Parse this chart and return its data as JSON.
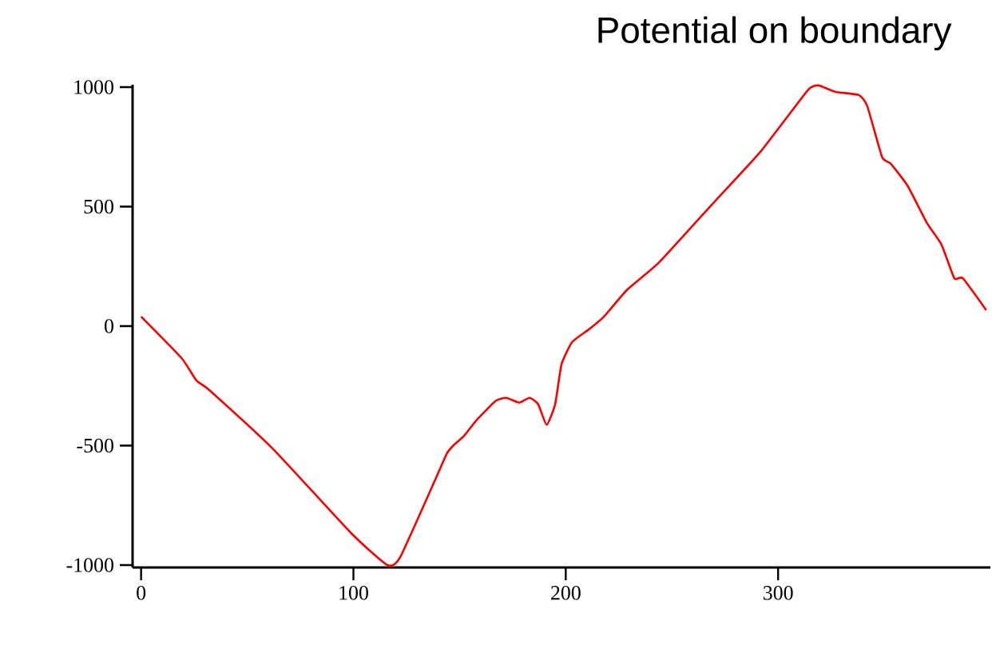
{
  "chart_data": {
    "type": "line",
    "title": "Potential on boundary",
    "x": [
      0,
      19,
      26,
      32,
      62,
      99,
      116,
      122,
      139,
      144,
      147,
      152,
      158,
      167,
      172,
      178,
      183,
      187,
      191,
      195,
      198,
      203,
      211,
      218,
      229,
      244,
      270,
      292,
      314,
      319,
      327,
      338,
      342,
      349,
      353,
      361,
      370,
      377,
      383,
      387,
      398
    ],
    "series": [
      {
        "color": "#ff0000",
        "values": [
          40,
          -133,
          -227,
          -267,
          -513,
          -867,
          -1000,
          -967,
          -633,
          -533,
          -500,
          -460,
          -393,
          -313,
          -300,
          -320,
          -300,
          -327,
          -413,
          -327,
          -160,
          -67,
          -13,
          40,
          153,
          267,
          520,
          733,
          987,
          1007,
          980,
          967,
          920,
          707,
          680,
          587,
          433,
          340,
          200,
          200,
          67
        ]
      }
    ],
    "xlim": [
      -4,
      400
    ],
    "ylim": [
      -1010,
      1010
    ],
    "xticks": [
      0,
      100,
      200,
      300
    ],
    "yticks": [
      -1000,
      -500,
      0,
      500,
      1000
    ],
    "grid": false,
    "line_style": "solid",
    "marker": "none"
  }
}
